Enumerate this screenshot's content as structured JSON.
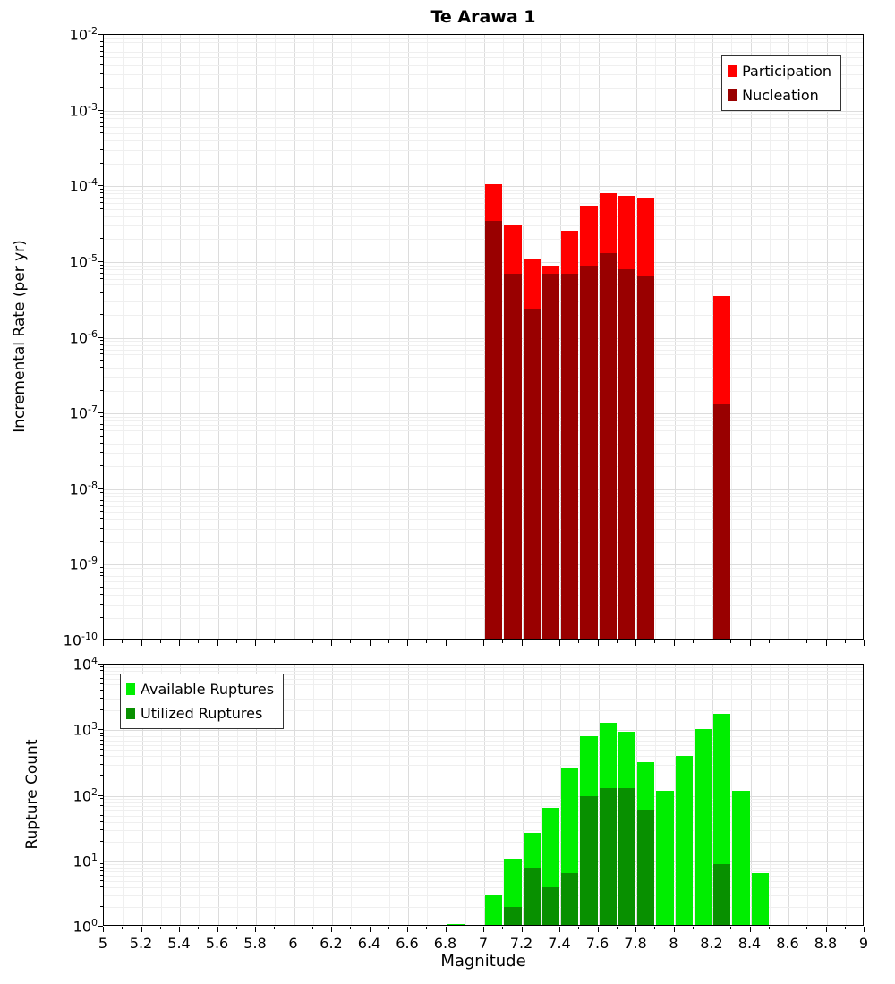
{
  "chart_data": [
    {
      "type": "bar",
      "title": "Te Arawa 1",
      "ylabel": "Incremental Rate (per yr)",
      "xlabel": "",
      "xlim": [
        5,
        9
      ],
      "x_tick_step": 0.2,
      "x_tick_labels": [
        "5",
        "5.2",
        "5.4",
        "5.6",
        "5.8",
        "6",
        "6.2",
        "6.4",
        "6.6",
        "6.8",
        "7",
        "7.2",
        "7.4",
        "7.6",
        "7.8",
        "8",
        "8.2",
        "8.4",
        "8.6",
        "8.8",
        "9"
      ],
      "y_scale": "log",
      "y_exp_range": [
        -2,
        -10
      ],
      "bin_width": 0.1,
      "grid": true,
      "legend_position": "top-right",
      "series": [
        {
          "name": "Participation",
          "color": "#ff0000",
          "x": [
            7.05,
            7.15,
            7.25,
            7.35,
            7.45,
            7.55,
            7.65,
            7.75,
            7.85,
            8.25
          ],
          "values": [
            0.000105,
            3e-05,
            1.1e-05,
            9e-06,
            2.6e-05,
            5.5e-05,
            8e-05,
            7.5e-05,
            7e-05,
            3.5e-06
          ]
        },
        {
          "name": "Nucleation",
          "color": "#990000",
          "x": [
            7.05,
            7.15,
            7.25,
            7.35,
            7.45,
            7.55,
            7.65,
            7.75,
            7.85,
            8.25
          ],
          "values": [
            3.5e-05,
            7e-06,
            2.4e-06,
            7e-06,
            7e-06,
            9e-06,
            1.3e-05,
            8e-06,
            6.5e-06,
            1.3e-07
          ]
        }
      ]
    },
    {
      "type": "bar",
      "title": "",
      "ylabel": "Rupture Count",
      "xlabel": "Magnitude",
      "xlim": [
        5,
        9
      ],
      "x_tick_step": 0.2,
      "x_tick_labels": [
        "5",
        "5.2",
        "5.4",
        "5.6",
        "5.8",
        "6",
        "6.2",
        "6.4",
        "6.6",
        "6.8",
        "7",
        "7.2",
        "7.4",
        "7.6",
        "7.8",
        "8",
        "8.2",
        "8.4",
        "8.6",
        "8.8",
        "9"
      ],
      "y_scale": "log",
      "y_exp_range": [
        4,
        0
      ],
      "bin_width": 0.1,
      "grid": true,
      "legend_position": "top-left",
      "series": [
        {
          "name": "Available Ruptures",
          "color": "#00ee00",
          "x": [
            6.85,
            7.05,
            7.15,
            7.25,
            7.35,
            7.45,
            7.55,
            7.65,
            7.75,
            7.85,
            7.95,
            8.05,
            8.15,
            8.25,
            8.35,
            8.45
          ],
          "values": [
            1.1,
            3,
            11,
            27,
            65,
            270,
            800,
            1300,
            950,
            330,
            120,
            400,
            1050,
            1800,
            120,
            6.5
          ]
        },
        {
          "name": "Utilized Ruptures",
          "color": "#089000",
          "x": [
            7.05,
            7.15,
            7.25,
            7.35,
            7.45,
            7.55,
            7.65,
            7.75,
            7.85,
            8.25
          ],
          "values": [
            1.05,
            2,
            8,
            4,
            6.5,
            100,
            130,
            130,
            60,
            9
          ]
        }
      ]
    }
  ]
}
